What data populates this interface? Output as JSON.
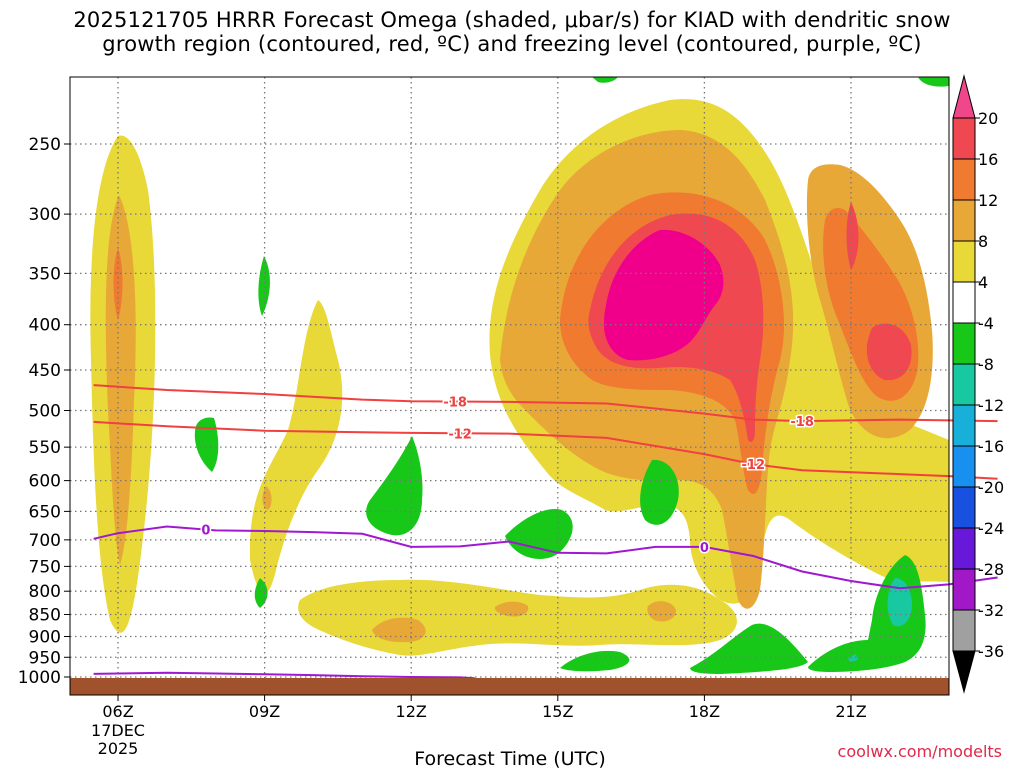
{
  "title": {
    "line1": "2025121705 HRRR Forecast Omega (shaded, μbar/s) for KIAD with dendritic snow",
    "line2": "growth region (contoured, red, ºC) and freezing level (contoured, purple, ºC)"
  },
  "credit": "coolwx.com/modelts",
  "chart_data": {
    "type": "area",
    "title": "2025121705 HRRR Forecast Omega (shaded, μbar/s) for KIAD with dendritic snow growth region (contoured, red, ºC) and freezing level (contoured, purple, ºC)",
    "xlabel": "Forecast Time (UTC)",
    "ylabel": "",
    "x_ticks": [
      "06Z",
      "09Z",
      "12Z",
      "15Z",
      "18Z",
      "21Z"
    ],
    "x_first_tick_extra": [
      "17DEC",
      "2025"
    ],
    "y_ticks": [
      250,
      300,
      350,
      400,
      450,
      500,
      550,
      600,
      650,
      700,
      750,
      800,
      850,
      900,
      950,
      1000
    ],
    "y_reversed": true,
    "colorbar": {
      "labels": [
        20,
        16,
        12,
        8,
        4,
        -4,
        -8,
        -12,
        -16,
        -20,
        -24,
        -28,
        -32,
        -36
      ],
      "colors": [
        "#f0468a",
        "#f04850",
        "#f07a30",
        "#e8a838",
        "#e8d838",
        "#ffffff",
        "#18c818",
        "#18c8a0",
        "#18b0d8",
        "#1890f0",
        "#1850e0",
        "#6818d8",
        "#a018c8",
        "#a0a0a0"
      ]
    },
    "contours": [
      {
        "name": "dendritic-upper",
        "label": "-18",
        "color": "#f04040",
        "points": [
          [
            5.5,
            468
          ],
          [
            7,
            474
          ],
          [
            9,
            479
          ],
          [
            11,
            486
          ],
          [
            12,
            488
          ],
          [
            14,
            489
          ],
          [
            16,
            491
          ],
          [
            18,
            504
          ],
          [
            19,
            512
          ],
          [
            20,
            514
          ],
          [
            22,
            512
          ],
          [
            23,
            513
          ],
          [
            24,
            514
          ]
        ]
      },
      {
        "name": "dendritic-lower",
        "label": "-12",
        "color": "#f04040",
        "points": [
          [
            5.5,
            515
          ],
          [
            7,
            521
          ],
          [
            9,
            527
          ],
          [
            11,
            529
          ],
          [
            12,
            530
          ],
          [
            14,
            531
          ],
          [
            16,
            537
          ],
          [
            18,
            560
          ],
          [
            19,
            575
          ],
          [
            20,
            584
          ],
          [
            22,
            590
          ],
          [
            23,
            593
          ],
          [
            24,
            597
          ]
        ]
      },
      {
        "name": "freezing-level",
        "label": "0",
        "color": "#a018d0",
        "points": [
          [
            5.5,
            698
          ],
          [
            6,
            688
          ],
          [
            7,
            676
          ],
          [
            8,
            683
          ],
          [
            9,
            684
          ],
          [
            10,
            686
          ],
          [
            11,
            689
          ],
          [
            12,
            713
          ],
          [
            13,
            712
          ],
          [
            14,
            703
          ],
          [
            15,
            724
          ],
          [
            16,
            725
          ],
          [
            17,
            713
          ],
          [
            18,
            713
          ],
          [
            19,
            730
          ],
          [
            20,
            760
          ],
          [
            21,
            779
          ],
          [
            22,
            794
          ],
          [
            23,
            786
          ],
          [
            24,
            772
          ]
        ]
      },
      {
        "name": "surface-freezing",
        "label": "",
        "color": "#a018d0",
        "points": [
          [
            5.5,
            992
          ],
          [
            6,
            991
          ],
          [
            7,
            989
          ],
          [
            8,
            991
          ],
          [
            9,
            993
          ],
          [
            10,
            995
          ],
          [
            11,
            998
          ],
          [
            12,
            1000
          ],
          [
            13,
            1001
          ],
          [
            13.3,
            1003
          ]
        ]
      }
    ],
    "omega_regions": [
      {
        "name": "06z-column",
        "level": "4 to 8",
        "time_range": [
          6,
          6.7
        ],
        "pressure_range": [
          250,
          700
        ]
      },
      {
        "name": "16z-18z-ascent",
        "level": "20+",
        "time_range": [
          16,
          18
        ],
        "pressure_range": [
          330,
          450
        ]
      },
      {
        "name": "21z-column",
        "level": "12 to 16",
        "time_range": [
          20,
          22.5
        ],
        "pressure_range": [
          270,
          460
        ]
      },
      {
        "name": "22z-lowlevel-sink",
        "level": "-8 to -12",
        "time_range": [
          21.5,
          23
        ],
        "pressure_range": [
          760,
          950
        ]
      }
    ]
  }
}
